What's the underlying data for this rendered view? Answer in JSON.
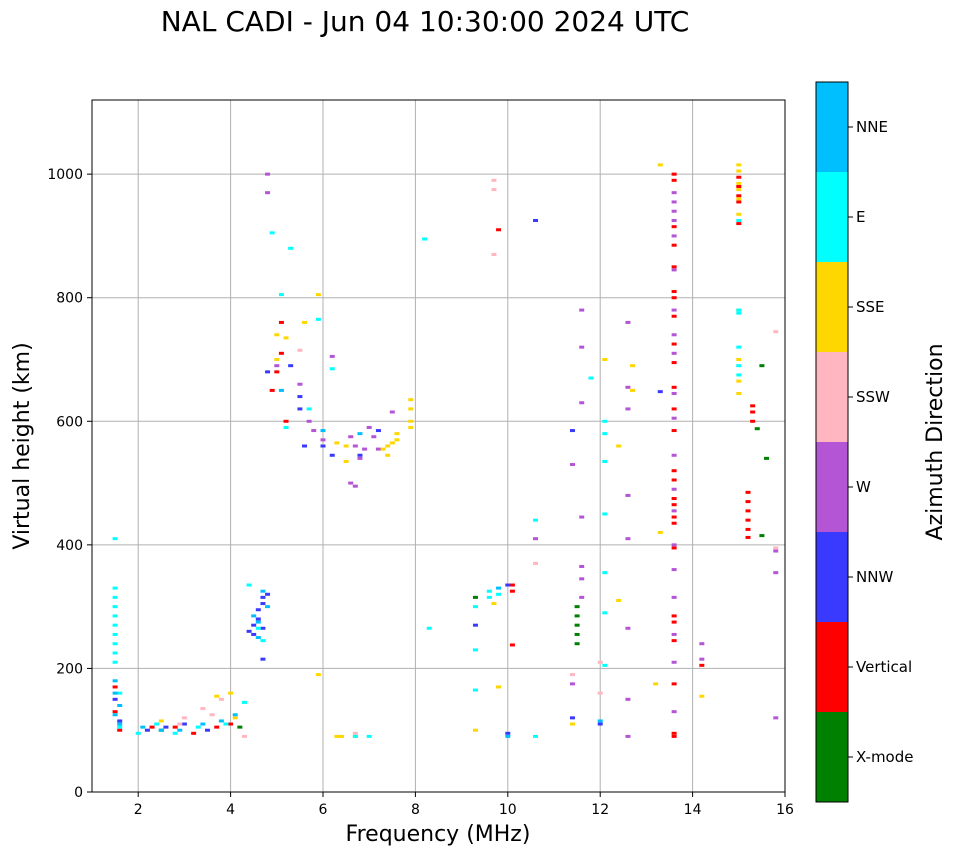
{
  "chart_data": {
    "type": "scatter",
    "title": "NAL CADI - Jun 04 10:30:00 2024 UTC",
    "xlabel": "Frequency (MHz)",
    "ylabel": "Virtual height (km)",
    "xlim": [
      1,
      16
    ],
    "ylim": [
      0,
      1120
    ],
    "xticks": [
      2,
      4,
      6,
      8,
      10,
      12,
      14,
      16
    ],
    "yticks": [
      0,
      200,
      400,
      600,
      800,
      1000
    ],
    "grid": true,
    "colorbar": {
      "label": "Azimuth Direction",
      "categories": [
        {
          "name": "X-mode",
          "color": "#008000"
        },
        {
          "name": "Vertical",
          "color": "#ff0000"
        },
        {
          "name": "NNW",
          "color": "#3a3aff"
        },
        {
          "name": "W",
          "color": "#b455d6"
        },
        {
          "name": "SSW",
          "color": "#ffb6c1"
        },
        {
          "name": "SSE",
          "color": "#ffd700"
        },
        {
          "name": "E",
          "color": "#00ffff"
        },
        {
          "name": "NNE",
          "color": "#00bfff"
        }
      ]
    },
    "series": [
      {
        "name": "X-mode",
        "points": [
          [
            11.5,
            240
          ],
          [
            11.5,
            255
          ],
          [
            11.5,
            270
          ],
          [
            11.5,
            285
          ],
          [
            11.5,
            300
          ],
          [
            15.5,
            690
          ],
          [
            15.6,
            540
          ],
          [
            15.5,
            415
          ],
          [
            15.4,
            588
          ],
          [
            4.2,
            105
          ],
          [
            9.3,
            315
          ],
          [
            2.5,
            100
          ]
        ]
      },
      {
        "name": "Vertical",
        "points": [
          [
            15.3,
            600
          ],
          [
            15.3,
            615
          ],
          [
            15.3,
            625
          ],
          [
            15.2,
            485
          ],
          [
            15.2,
            470
          ],
          [
            15.2,
            455
          ],
          [
            15.2,
            440
          ],
          [
            15.2,
            425
          ],
          [
            15.2,
            412
          ],
          [
            15.0,
            995
          ],
          [
            15.0,
            980
          ],
          [
            15.0,
            965
          ],
          [
            15.0,
            955
          ],
          [
            15.0,
            920
          ],
          [
            13.6,
            1000
          ],
          [
            13.6,
            990
          ],
          [
            13.6,
            915
          ],
          [
            13.6,
            885
          ],
          [
            13.6,
            850
          ],
          [
            13.6,
            810
          ],
          [
            13.6,
            800
          ],
          [
            13.6,
            770
          ],
          [
            13.6,
            725
          ],
          [
            13.6,
            695
          ],
          [
            13.6,
            655
          ],
          [
            13.6,
            620
          ],
          [
            13.6,
            585
          ],
          [
            13.6,
            520
          ],
          [
            13.6,
            505
          ],
          [
            13.6,
            475
          ],
          [
            13.6,
            465
          ],
          [
            13.6,
            445
          ],
          [
            13.6,
            435
          ],
          [
            13.6,
            395
          ],
          [
            13.6,
            285
          ],
          [
            13.6,
            275
          ],
          [
            13.6,
            245
          ],
          [
            13.6,
            175
          ],
          [
            13.6,
            95
          ],
          [
            13.6,
            90
          ],
          [
            14.2,
            205
          ],
          [
            10.1,
            335
          ],
          [
            10.1,
            325
          ],
          [
            10.1,
            238
          ],
          [
            9.8,
            910
          ],
          [
            5.1,
            760
          ],
          [
            5.1,
            710
          ],
          [
            5.0,
            680
          ],
          [
            5.2,
            600
          ],
          [
            4.9,
            650
          ],
          [
            1.5,
            170
          ],
          [
            1.5,
            130
          ],
          [
            1.6,
            100
          ],
          [
            2.3,
            105
          ],
          [
            2.8,
            105
          ],
          [
            3.2,
            95
          ],
          [
            3.7,
            105
          ],
          [
            4.0,
            110
          ]
        ]
      },
      {
        "name": "NNW",
        "points": [
          [
            4.5,
            255
          ],
          [
            4.5,
            270
          ],
          [
            4.6,
            280
          ],
          [
            4.6,
            295
          ],
          [
            4.7,
            305
          ],
          [
            4.7,
            315
          ],
          [
            4.8,
            320
          ],
          [
            4.4,
            260
          ],
          [
            4.7,
            265
          ],
          [
            4.7,
            215
          ],
          [
            4.8,
            680
          ],
          [
            5.3,
            690
          ],
          [
            5.5,
            640
          ],
          [
            5.5,
            620
          ],
          [
            5.6,
            560
          ],
          [
            6.0,
            560
          ],
          [
            6.2,
            545
          ],
          [
            6.8,
            545
          ],
          [
            7.2,
            585
          ],
          [
            9.3,
            270
          ],
          [
            10.0,
            335
          ],
          [
            10.0,
            95
          ],
          [
            10.6,
            925
          ],
          [
            11.4,
            585
          ],
          [
            12.0,
            110
          ],
          [
            11.4,
            120
          ],
          [
            2.2,
            100
          ],
          [
            2.6,
            105
          ],
          [
            3.0,
            110
          ],
          [
            3.5,
            100
          ],
          [
            1.5,
            150
          ],
          [
            1.6,
            115
          ],
          [
            13.3,
            648
          ]
        ]
      },
      {
        "name": "W",
        "points": [
          [
            4.8,
            970
          ],
          [
            4.8,
            1000
          ],
          [
            6.2,
            705
          ],
          [
            5.5,
            660
          ],
          [
            5.0,
            690
          ],
          [
            5.7,
            600
          ],
          [
            5.8,
            585
          ],
          [
            6.0,
            570
          ],
          [
            6.6,
            575
          ],
          [
            6.7,
            560
          ],
          [
            6.8,
            540
          ],
          [
            6.9,
            555
          ],
          [
            7.0,
            590
          ],
          [
            7.1,
            575
          ],
          [
            7.2,
            555
          ],
          [
            6.6,
            500
          ],
          [
            6.7,
            495
          ],
          [
            7.5,
            615
          ],
          [
            11.6,
            780
          ],
          [
            11.6,
            720
          ],
          [
            11.6,
            630
          ],
          [
            11.4,
            530
          ],
          [
            11.6,
            445
          ],
          [
            11.6,
            365
          ],
          [
            11.6,
            345
          ],
          [
            11.6,
            315
          ],
          [
            12.6,
            760
          ],
          [
            12.6,
            655
          ],
          [
            12.6,
            620
          ],
          [
            12.6,
            480
          ],
          [
            12.6,
            410
          ],
          [
            12.6,
            265
          ],
          [
            12.6,
            150
          ],
          [
            12.6,
            90
          ],
          [
            13.6,
            970
          ],
          [
            13.6,
            955
          ],
          [
            13.6,
            940
          ],
          [
            13.6,
            925
          ],
          [
            13.6,
            900
          ],
          [
            13.6,
            845
          ],
          [
            13.6,
            780
          ],
          [
            13.6,
            740
          ],
          [
            13.6,
            710
          ],
          [
            13.6,
            645
          ],
          [
            13.6,
            605
          ],
          [
            13.6,
            545
          ],
          [
            13.6,
            490
          ],
          [
            13.6,
            455
          ],
          [
            13.6,
            400
          ],
          [
            13.6,
            360
          ],
          [
            13.6,
            315
          ],
          [
            13.6,
            255
          ],
          [
            13.6,
            210
          ],
          [
            13.6,
            130
          ],
          [
            14.2,
            240
          ],
          [
            14.2,
            215
          ],
          [
            15.8,
            390
          ],
          [
            15.8,
            355
          ],
          [
            15.8,
            120
          ],
          [
            10.6,
            410
          ],
          [
            11.4,
            175
          ]
        ]
      },
      {
        "name": "SSW",
        "points": [
          [
            9.7,
            990
          ],
          [
            9.7,
            975
          ],
          [
            9.7,
            870
          ],
          [
            10.6,
            370
          ],
          [
            11.4,
            190
          ],
          [
            12.0,
            160
          ],
          [
            12.0,
            210
          ],
          [
            15.8,
            745
          ],
          [
            15.8,
            395
          ],
          [
            5.5,
            715
          ],
          [
            6.7,
            95
          ],
          [
            4.3,
            90
          ],
          [
            3.8,
            150
          ],
          [
            3.4,
            135
          ],
          [
            3.0,
            120
          ],
          [
            2.9,
            110
          ],
          [
            3.6,
            125
          ]
        ]
      },
      {
        "name": "SSE",
        "points": [
          [
            7.9,
            635
          ],
          [
            7.9,
            620
          ],
          [
            7.9,
            600
          ],
          [
            7.9,
            590
          ],
          [
            7.6,
            580
          ],
          [
            7.6,
            570
          ],
          [
            7.5,
            565
          ],
          [
            7.4,
            560
          ],
          [
            7.3,
            555
          ],
          [
            7.4,
            545
          ],
          [
            6.5,
            560
          ],
          [
            6.3,
            565
          ],
          [
            6.5,
            535
          ],
          [
            5.9,
            805
          ],
          [
            5.6,
            760
          ],
          [
            5.2,
            735
          ],
          [
            5.0,
            700
          ],
          [
            5.0,
            740
          ],
          [
            5.9,
            190
          ],
          [
            6.3,
            90
          ],
          [
            6.4,
            90
          ],
          [
            6.7,
            90
          ],
          [
            9.3,
            100
          ],
          [
            9.7,
            305
          ],
          [
            9.8,
            170
          ],
          [
            11.4,
            110
          ],
          [
            12.1,
            700
          ],
          [
            12.4,
            560
          ],
          [
            12.4,
            310
          ],
          [
            12.7,
            690
          ],
          [
            12.7,
            650
          ],
          [
            13.3,
            1015
          ],
          [
            13.3,
            420
          ],
          [
            13.2,
            175
          ],
          [
            14.2,
            155
          ],
          [
            15.0,
            780
          ],
          [
            15.0,
            700
          ],
          [
            15.0,
            665
          ],
          [
            15.0,
            645
          ],
          [
            15.0,
            1015
          ],
          [
            15.0,
            1005
          ],
          [
            15.0,
            985
          ],
          [
            15.0,
            975
          ],
          [
            15.0,
            960
          ],
          [
            15.0,
            935
          ],
          [
            3.7,
            155
          ],
          [
            4.0,
            160
          ],
          [
            4.1,
            120
          ],
          [
            2.5,
            115
          ]
        ]
      },
      {
        "name": "E",
        "points": [
          [
            1.5,
            210
          ],
          [
            1.5,
            225
          ],
          [
            1.5,
            240
          ],
          [
            1.5,
            255
          ],
          [
            1.5,
            270
          ],
          [
            1.5,
            285
          ],
          [
            1.5,
            300
          ],
          [
            1.5,
            315
          ],
          [
            1.5,
            330
          ],
          [
            1.5,
            410
          ],
          [
            1.6,
            160
          ],
          [
            1.6,
            105
          ],
          [
            2.0,
            95
          ],
          [
            2.4,
            110
          ],
          [
            2.8,
            95
          ],
          [
            3.3,
            105
          ],
          [
            3.9,
            110
          ],
          [
            4.3,
            145
          ],
          [
            4.4,
            335
          ],
          [
            4.9,
            905
          ],
          [
            5.3,
            880
          ],
          [
            5.1,
            805
          ],
          [
            5.9,
            765
          ],
          [
            6.2,
            685
          ],
          [
            5.7,
            620
          ],
          [
            5.2,
            590
          ],
          [
            4.6,
            265
          ],
          [
            4.7,
            245
          ],
          [
            8.2,
            895
          ],
          [
            8.3,
            265
          ],
          [
            9.3,
            300
          ],
          [
            9.3,
            230
          ],
          [
            9.3,
            165
          ],
          [
            9.6,
            325
          ],
          [
            9.6,
            315
          ],
          [
            9.8,
            320
          ],
          [
            10.6,
            440
          ],
          [
            10.6,
            90
          ],
          [
            11.8,
            670
          ],
          [
            12.1,
            600
          ],
          [
            12.1,
            580
          ],
          [
            12.1,
            535
          ],
          [
            12.1,
            450
          ],
          [
            12.1,
            355
          ],
          [
            12.1,
            290
          ],
          [
            12.1,
            205
          ],
          [
            15.0,
            780
          ],
          [
            15.0,
            775
          ],
          [
            15.0,
            720
          ],
          [
            15.0,
            690
          ],
          [
            15.0,
            675
          ],
          [
            15.0,
            925
          ],
          [
            6.7,
            90
          ],
          [
            7.0,
            90
          ]
        ]
      },
      {
        "name": "NNE",
        "points": [
          [
            1.5,
            180
          ],
          [
            1.5,
            160
          ],
          [
            1.6,
            140
          ],
          [
            1.5,
            125
          ],
          [
            1.6,
            110
          ],
          [
            2.1,
            105
          ],
          [
            2.5,
            100
          ],
          [
            2.9,
            100
          ],
          [
            3.4,
            110
          ],
          [
            3.8,
            115
          ],
          [
            4.1,
            125
          ],
          [
            4.5,
            285
          ],
          [
            4.6,
            275
          ],
          [
            4.6,
            250
          ],
          [
            4.8,
            300
          ],
          [
            4.7,
            325
          ],
          [
            5.1,
            650
          ],
          [
            6.0,
            585
          ],
          [
            6.8,
            580
          ],
          [
            9.8,
            330
          ],
          [
            10.0,
            90
          ],
          [
            12.0,
            115
          ]
        ]
      }
    ]
  }
}
